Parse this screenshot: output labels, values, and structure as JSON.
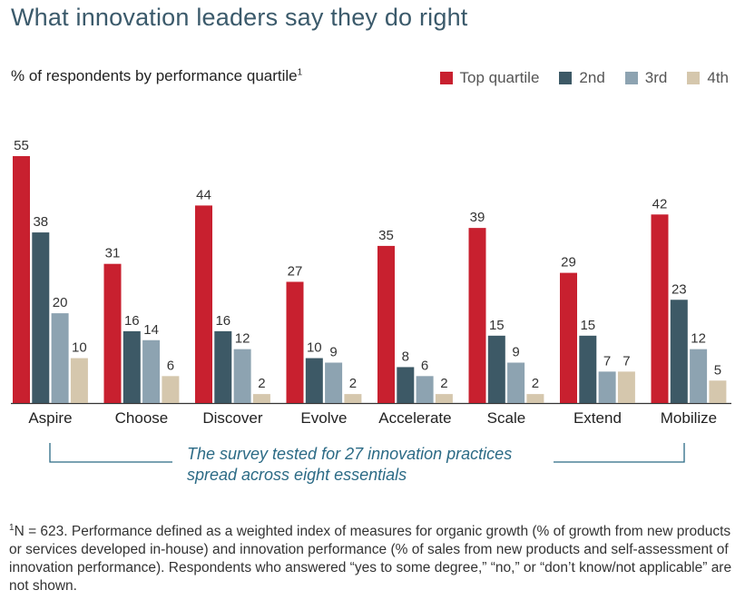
{
  "title": "What innovation leaders say they do right",
  "subtitle": "% of respondents by performance quartile",
  "subtitle_sup": "1",
  "colors": {
    "top": "#c8202f",
    "second": "#3d5966",
    "third": "#8da3b1",
    "fourth": "#d5c7ad",
    "axis": "#333333",
    "bracket": "#2b6a85"
  },
  "chart_data": {
    "type": "bar",
    "categories": [
      "Aspire",
      "Choose",
      "Discover",
      "Evolve",
      "Accelerate",
      "Scale",
      "Extend",
      "Mobilize"
    ],
    "series": [
      {
        "name": "Top quartile",
        "values": [
          55,
          31,
          44,
          27,
          35,
          39,
          29,
          42
        ]
      },
      {
        "name": "2nd",
        "values": [
          38,
          16,
          16,
          10,
          8,
          15,
          15,
          23
        ]
      },
      {
        "name": "3rd",
        "values": [
          20,
          14,
          12,
          9,
          6,
          9,
          7,
          12
        ]
      },
      {
        "name": "4th",
        "values": [
          10,
          6,
          2,
          2,
          2,
          2,
          7,
          5
        ]
      }
    ],
    "ylim": [
      0,
      55
    ],
    "legend": "top-right",
    "grid": false
  },
  "annotation": {
    "line1": "The survey tested for 27 innovation practices",
    "line2": "spread across eight essentials"
  },
  "footnote_sup": "1",
  "footnote": "N = 623. Performance defined as a weighted index of measures for organic growth (% of growth from new products or services developed in-house) and innovation performance (% of sales from new products and self-assessment of innovation performance). Respondents who answered “yes to some degree,” “no,” or “don’t know/not applicable” are not shown."
}
